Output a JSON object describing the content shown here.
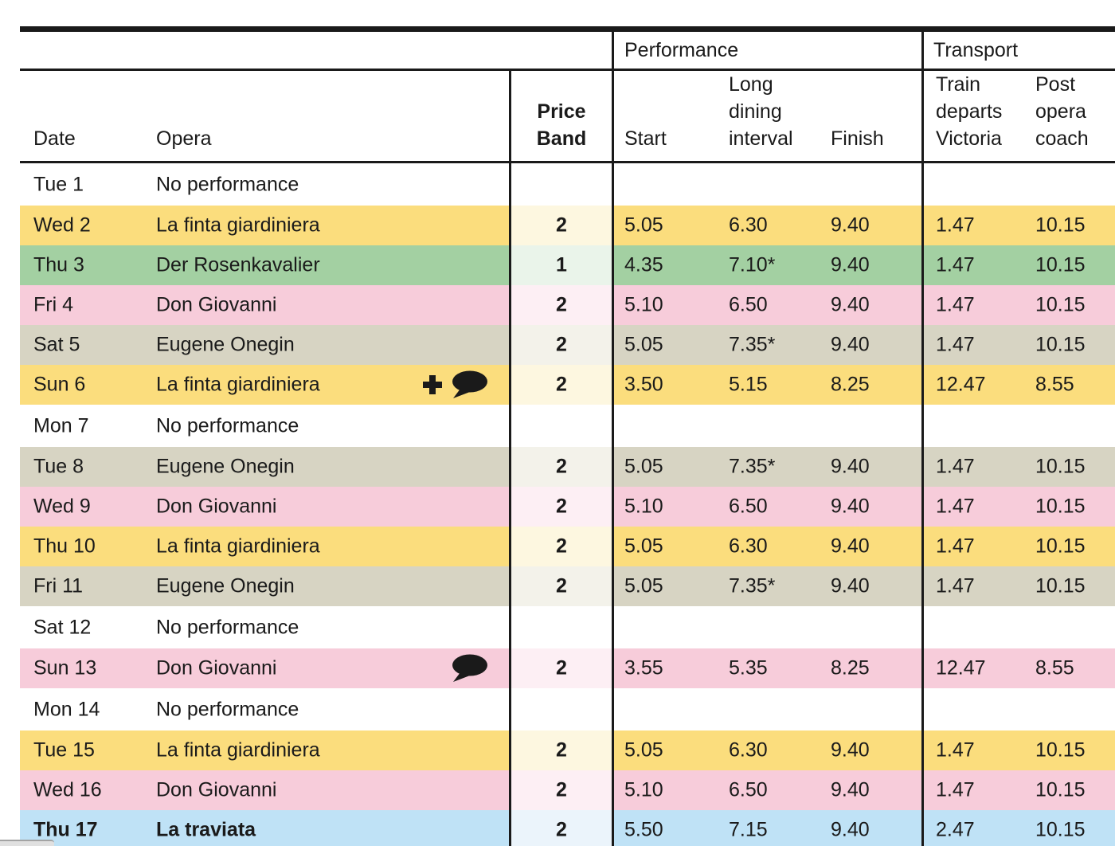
{
  "header": {
    "performance_group": "Performance",
    "transport_group": "Transport",
    "date": "Date",
    "opera": "Opera",
    "price_band": "Price\nBand",
    "start": "Start",
    "interval": "Long\ndining\ninterval",
    "finish": "Finish",
    "train": "Train\ndeparts\nVictoria",
    "coach": "Post\nopera\ncoach"
  },
  "colors": {
    "yellow": {
      "main": "#fbdd7d",
      "pale": "#fdf7e0"
    },
    "green": {
      "main": "#a3d0a2",
      "pale": "#eaf4ea"
    },
    "pink": {
      "main": "#f7ccda",
      "pale": "#fdeff4"
    },
    "tan": {
      "main": "#d7d4c3",
      "pale": "#f3f2ea"
    },
    "blue": {
      "main": "#bfe2f6",
      "pale": "#ebf4fb"
    },
    "ink": "#1a1a1a"
  },
  "rows": [
    {
      "date": "Tue 1",
      "opera": "No performance",
      "type": "none"
    },
    {
      "date": "Wed 2",
      "opera": "La finta giardiniera",
      "color": "yellow",
      "band": "2",
      "start": "5.05",
      "interval": "6.30",
      "finish": "9.40",
      "train": "1.47",
      "coach": "10.15",
      "icons": []
    },
    {
      "date": "Thu 3",
      "opera": "Der Rosenkavalier",
      "color": "green",
      "band": "1",
      "start": "4.35",
      "interval": "7.10*",
      "finish": "9.40",
      "train": "1.47",
      "coach": "10.15",
      "icons": []
    },
    {
      "date": "Fri 4",
      "opera": "Don Giovanni",
      "color": "pink",
      "band": "2",
      "start": "5.10",
      "interval": "6.50",
      "finish": "9.40",
      "train": "1.47",
      "coach": "10.15",
      "icons": []
    },
    {
      "date": "Sat 5",
      "opera": "Eugene Onegin",
      "color": "tan",
      "band": "2",
      "start": "5.05",
      "interval": "7.35*",
      "finish": "9.40",
      "train": "1.47",
      "coach": "10.15",
      "icons": []
    },
    {
      "date": "Sun 6",
      "opera": "La finta giardiniera",
      "color": "yellow",
      "band": "2",
      "start": "3.50",
      "interval": "5.15",
      "finish": "8.25",
      "train": "12.47",
      "coach": "8.55",
      "icons": [
        "plus-icon",
        "speech-bubble-icon"
      ]
    },
    {
      "date": "Mon 7",
      "opera": "No performance",
      "type": "none"
    },
    {
      "date": "Tue 8",
      "opera": "Eugene Onegin",
      "color": "tan",
      "band": "2",
      "start": "5.05",
      "interval": "7.35*",
      "finish": "9.40",
      "train": "1.47",
      "coach": "10.15",
      "icons": []
    },
    {
      "date": "Wed 9",
      "opera": "Don Giovanni",
      "color": "pink",
      "band": "2",
      "start": "5.10",
      "interval": "6.50",
      "finish": "9.40",
      "train": "1.47",
      "coach": "10.15",
      "icons": []
    },
    {
      "date": "Thu 10",
      "opera": "La finta giardiniera",
      "color": "yellow",
      "band": "2",
      "start": "5.05",
      "interval": "6.30",
      "finish": "9.40",
      "train": "1.47",
      "coach": "10.15",
      "icons": []
    },
    {
      "date": "Fri 11",
      "opera": "Eugene Onegin",
      "color": "tan",
      "band": "2",
      "start": "5.05",
      "interval": "7.35*",
      "finish": "9.40",
      "train": "1.47",
      "coach": "10.15",
      "icons": []
    },
    {
      "date": "Sat 12",
      "opera": "No performance",
      "type": "none"
    },
    {
      "date": "Sun 13",
      "opera": "Don Giovanni",
      "color": "pink",
      "band": "2",
      "start": "3.55",
      "interval": "5.35",
      "finish": "8.25",
      "train": "12.47",
      "coach": "8.55",
      "icons": [
        "speech-bubble-icon"
      ]
    },
    {
      "date": "Mon 14",
      "opera": "No performance",
      "type": "none"
    },
    {
      "date": "Tue 15",
      "opera": "La finta giardiniera",
      "color": "yellow",
      "band": "2",
      "start": "5.05",
      "interval": "6.30",
      "finish": "9.40",
      "train": "1.47",
      "coach": "10.15",
      "icons": []
    },
    {
      "date": "Wed 16",
      "opera": "Don Giovanni",
      "color": "pink",
      "band": "2",
      "start": "5.10",
      "interval": "6.50",
      "finish": "9.40",
      "train": "1.47",
      "coach": "10.15",
      "icons": []
    },
    {
      "date": "Thu 17",
      "opera": "La traviata",
      "color": "blue",
      "band": "2",
      "start": "5.50",
      "interval": "7.15",
      "finish": "9.40",
      "train": "2.47",
      "coach": "10.15",
      "icons": [],
      "bold": true
    }
  ]
}
